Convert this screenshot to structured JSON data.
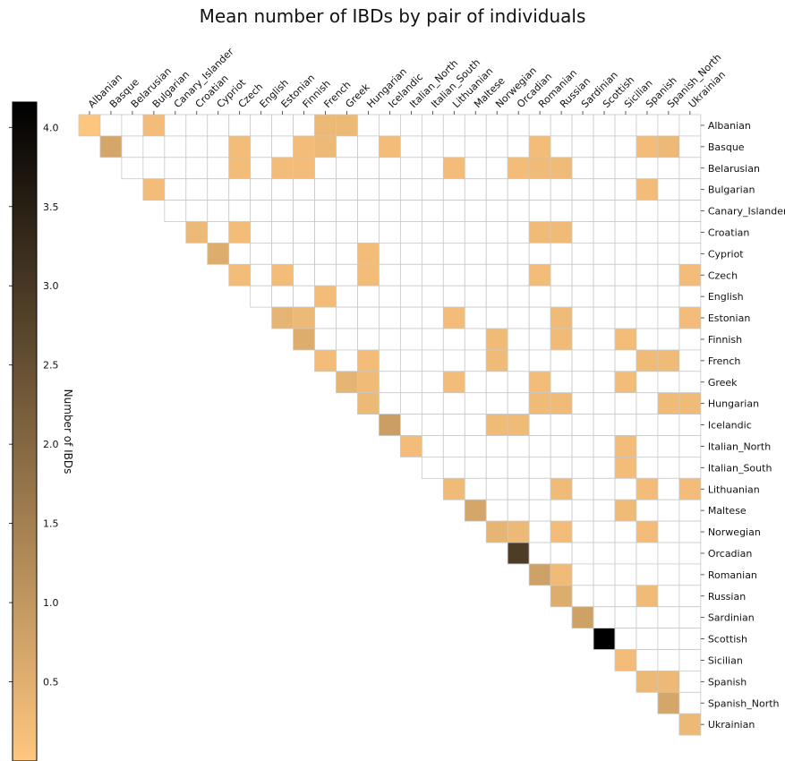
{
  "chart_data": {
    "type": "heatmap",
    "title": "Mean number of IBDs by pair of individuals",
    "colorbar_label": "Number of IBDs",
    "colorbar_ticks": [
      4.0,
      3.5,
      3.0,
      2.5,
      2.0,
      1.5,
      1.0,
      0.5
    ],
    "colorbar_tick_labels": [
      "4.0",
      "3.5",
      "3.0",
      "2.5",
      "2.0",
      "1.5",
      "1.0",
      "0.5"
    ],
    "colormap": "copper_reversed",
    "colormap_colors": {
      "low": "#ffc77f",
      "high": "#000000"
    },
    "value_range": [
      0,
      4.16
    ],
    "grid": true,
    "grid_color": "#c8c8c8",
    "x_axis_position": "top",
    "y_axis_position": "right",
    "colorbar_position": "left",
    "populations": [
      "Albanian",
      "Basque",
      "Belarusian",
      "Bulgarian",
      "Canary_Islander",
      "Croatian",
      "Cypriot",
      "Czech",
      "English",
      "Estonian",
      "Finnish",
      "French",
      "Greek",
      "Hungarian",
      "Icelandic",
      "Italian_North",
      "Italian_South",
      "Lithuanian",
      "Maltese",
      "Norwegian",
      "Orcadian",
      "Romanian",
      "Russian",
      "Sardinian",
      "Scottish",
      "Sicilian",
      "Spanish",
      "Spanish_North",
      "Ukrainian"
    ],
    "cells": [
      {
        "row": "Albanian",
        "col": "Albanian",
        "value": 0.03
      },
      {
        "row": "Albanian",
        "col": "Bulgarian",
        "value": 0.2
      },
      {
        "row": "Albanian",
        "col": "French",
        "value": 0.3
      },
      {
        "row": "Albanian",
        "col": "Greek",
        "value": 0.3
      },
      {
        "row": "Basque",
        "col": "Basque",
        "value": 0.7
      },
      {
        "row": "Basque",
        "col": "Czech",
        "value": 0.2
      },
      {
        "row": "Basque",
        "col": "Finnish",
        "value": 0.2
      },
      {
        "row": "Basque",
        "col": "French",
        "value": 0.3
      },
      {
        "row": "Basque",
        "col": "Icelandic",
        "value": 0.2
      },
      {
        "row": "Basque",
        "col": "Romanian",
        "value": 0.2
      },
      {
        "row": "Basque",
        "col": "Spanish",
        "value": 0.2
      },
      {
        "row": "Basque",
        "col": "Spanish_North",
        "value": 0.3
      },
      {
        "row": "Belarusian",
        "col": "Czech",
        "value": 0.2
      },
      {
        "row": "Belarusian",
        "col": "Estonian",
        "value": 0.2
      },
      {
        "row": "Belarusian",
        "col": "Finnish",
        "value": 0.2
      },
      {
        "row": "Belarusian",
        "col": "Lithuanian",
        "value": 0.2
      },
      {
        "row": "Belarusian",
        "col": "Orcadian",
        "value": 0.2
      },
      {
        "row": "Belarusian",
        "col": "Romanian",
        "value": 0.25
      },
      {
        "row": "Belarusian",
        "col": "Russian",
        "value": 0.25
      },
      {
        "row": "Bulgarian",
        "col": "Bulgarian",
        "value": 0.2
      },
      {
        "row": "Bulgarian",
        "col": "Spanish",
        "value": 0.2
      },
      {
        "row": "Croatian",
        "col": "Croatian",
        "value": 0.3
      },
      {
        "row": "Croatian",
        "col": "Czech",
        "value": 0.2
      },
      {
        "row": "Croatian",
        "col": "Romanian",
        "value": 0.25
      },
      {
        "row": "Croatian",
        "col": "Russian",
        "value": 0.25
      },
      {
        "row": "Cypriot",
        "col": "Cypriot",
        "value": 0.55
      },
      {
        "row": "Cypriot",
        "col": "Hungarian",
        "value": 0.2
      },
      {
        "row": "Czech",
        "col": "Czech",
        "value": 0.2
      },
      {
        "row": "Czech",
        "col": "Estonian",
        "value": 0.2
      },
      {
        "row": "Czech",
        "col": "Hungarian",
        "value": 0.2
      },
      {
        "row": "Czech",
        "col": "Romanian",
        "value": 0.2
      },
      {
        "row": "Czech",
        "col": "Ukrainian",
        "value": 0.2
      },
      {
        "row": "English",
        "col": "French",
        "value": 0.2
      },
      {
        "row": "Estonian",
        "col": "Estonian",
        "value": 0.4
      },
      {
        "row": "Estonian",
        "col": "Finnish",
        "value": 0.3
      },
      {
        "row": "Estonian",
        "col": "Lithuanian",
        "value": 0.2
      },
      {
        "row": "Estonian",
        "col": "Russian",
        "value": 0.25
      },
      {
        "row": "Estonian",
        "col": "Ukrainian",
        "value": 0.2
      },
      {
        "row": "Finnish",
        "col": "Finnish",
        "value": 0.55
      },
      {
        "row": "Finnish",
        "col": "Norwegian",
        "value": 0.25
      },
      {
        "row": "Finnish",
        "col": "Russian",
        "value": 0.25
      },
      {
        "row": "Finnish",
        "col": "Sicilian",
        "value": 0.2
      },
      {
        "row": "French",
        "col": "French",
        "value": 0.2
      },
      {
        "row": "French",
        "col": "Hungarian",
        "value": 0.2
      },
      {
        "row": "French",
        "col": "Norwegian",
        "value": 0.25
      },
      {
        "row": "French",
        "col": "Spanish",
        "value": 0.25
      },
      {
        "row": "French",
        "col": "Spanish_North",
        "value": 0.25
      },
      {
        "row": "Greek",
        "col": "Greek",
        "value": 0.4
      },
      {
        "row": "Greek",
        "col": "Hungarian",
        "value": 0.25
      },
      {
        "row": "Greek",
        "col": "Lithuanian",
        "value": 0.2
      },
      {
        "row": "Greek",
        "col": "Romanian",
        "value": 0.2
      },
      {
        "row": "Greek",
        "col": "Sicilian",
        "value": 0.2
      },
      {
        "row": "Hungarian",
        "col": "Hungarian",
        "value": 0.3
      },
      {
        "row": "Hungarian",
        "col": "Romanian",
        "value": 0.25
      },
      {
        "row": "Hungarian",
        "col": "Russian",
        "value": 0.25
      },
      {
        "row": "Hungarian",
        "col": "Spanish_North",
        "value": 0.25
      },
      {
        "row": "Hungarian",
        "col": "Ukrainian",
        "value": 0.25
      },
      {
        "row": "Icelandic",
        "col": "Icelandic",
        "value": 0.85
      },
      {
        "row": "Icelandic",
        "col": "Norwegian",
        "value": 0.25
      },
      {
        "row": "Icelandic",
        "col": "Orcadian",
        "value": 0.25
      },
      {
        "row": "Italian_North",
        "col": "Italian_North",
        "value": 0.2
      },
      {
        "row": "Italian_North",
        "col": "Sicilian",
        "value": 0.2
      },
      {
        "row": "Italian_South",
        "col": "Sicilian",
        "value": 0.2
      },
      {
        "row": "Lithuanian",
        "col": "Lithuanian",
        "value": 0.25
      },
      {
        "row": "Lithuanian",
        "col": "Russian",
        "value": 0.25
      },
      {
        "row": "Lithuanian",
        "col": "Spanish",
        "value": 0.2
      },
      {
        "row": "Lithuanian",
        "col": "Ukrainian",
        "value": 0.2
      },
      {
        "row": "Maltese",
        "col": "Maltese",
        "value": 0.7
      },
      {
        "row": "Maltese",
        "col": "Sicilian",
        "value": 0.25
      },
      {
        "row": "Norwegian",
        "col": "Norwegian",
        "value": 0.4
      },
      {
        "row": "Norwegian",
        "col": "Orcadian",
        "value": 0.3
      },
      {
        "row": "Norwegian",
        "col": "Russian",
        "value": 0.2
      },
      {
        "row": "Norwegian",
        "col": "Spanish",
        "value": 0.2
      },
      {
        "row": "Orcadian",
        "col": "Orcadian",
        "value": 2.9
      },
      {
        "row": "Romanian",
        "col": "Romanian",
        "value": 0.8
      },
      {
        "row": "Romanian",
        "col": "Russian",
        "value": 0.25
      },
      {
        "row": "Russian",
        "col": "Russian",
        "value": 0.55
      },
      {
        "row": "Russian",
        "col": "Spanish",
        "value": 0.25
      },
      {
        "row": "Sardinian",
        "col": "Sardinian",
        "value": 0.8
      },
      {
        "row": "Scottish",
        "col": "Scottish",
        "value": 4.16
      },
      {
        "row": "Sicilian",
        "col": "Sicilian",
        "value": 0.2
      },
      {
        "row": "Spanish",
        "col": "Spanish",
        "value": 0.3
      },
      {
        "row": "Spanish",
        "col": "Spanish_North",
        "value": 0.3
      },
      {
        "row": "Spanish_North",
        "col": "Spanish_North",
        "value": 0.7
      },
      {
        "row": "Ukrainian",
        "col": "Ukrainian",
        "value": 0.3
      }
    ]
  }
}
